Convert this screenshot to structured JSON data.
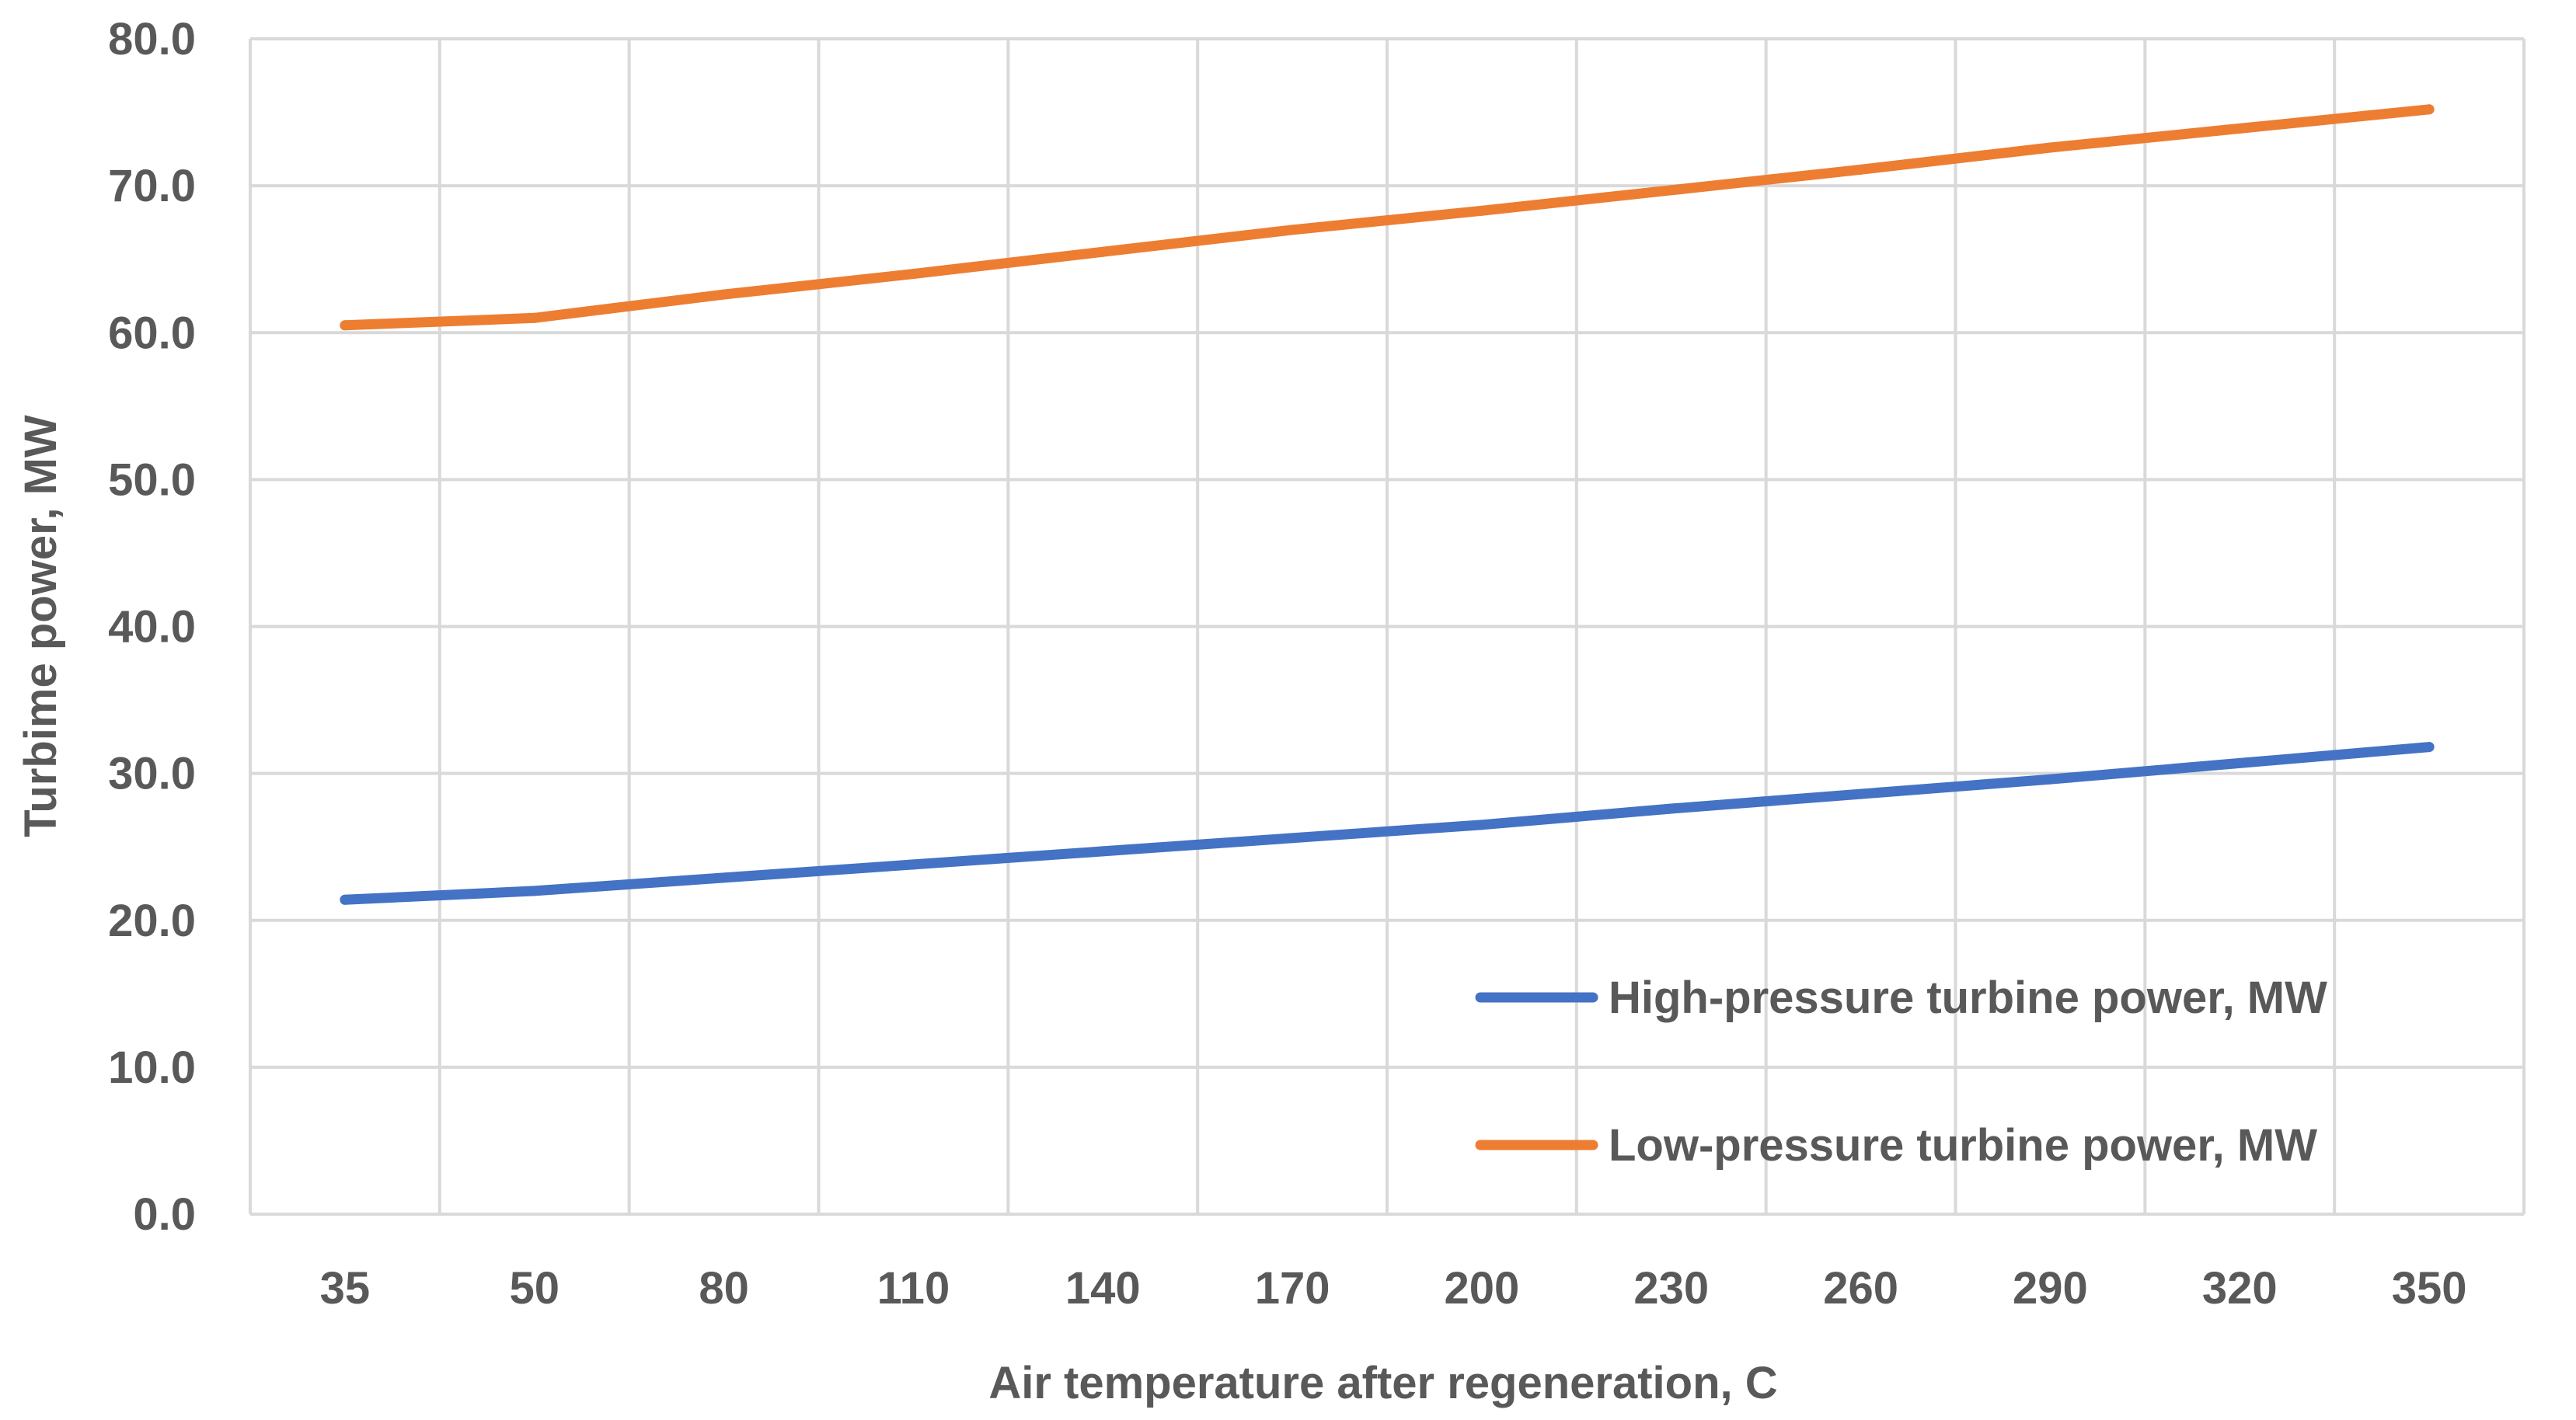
{
  "chart_data": {
    "type": "line",
    "title": "",
    "xlabel": "Air temperature after regeneration, C",
    "ylabel": "Turbime power, MW",
    "categories": [
      "35",
      "50",
      "80",
      "110",
      "140",
      "170",
      "200",
      "230",
      "260",
      "290",
      "320",
      "350"
    ],
    "ylim": [
      0,
      80
    ],
    "yticks": [
      "0.0",
      "10.0",
      "20.0",
      "30.0",
      "40.0",
      "50.0",
      "60.0",
      "70.0",
      "80.0"
    ],
    "grid": true,
    "legend_position": "bottom-right",
    "series": [
      {
        "name": "High-pressure turbine power, MW",
        "color": "#4472C4",
        "values": [
          21.4,
          22.0,
          22.9,
          23.8,
          24.7,
          25.6,
          26.5,
          27.6,
          28.6,
          29.6,
          30.7,
          31.8
        ]
      },
      {
        "name": "Low-pressure turbine power, MW",
        "color": "#ED7D31",
        "values": [
          60.5,
          61.0,
          62.6,
          64.0,
          65.5,
          67.0,
          68.3,
          69.7,
          71.1,
          72.6,
          73.9,
          75.2
        ]
      }
    ]
  }
}
